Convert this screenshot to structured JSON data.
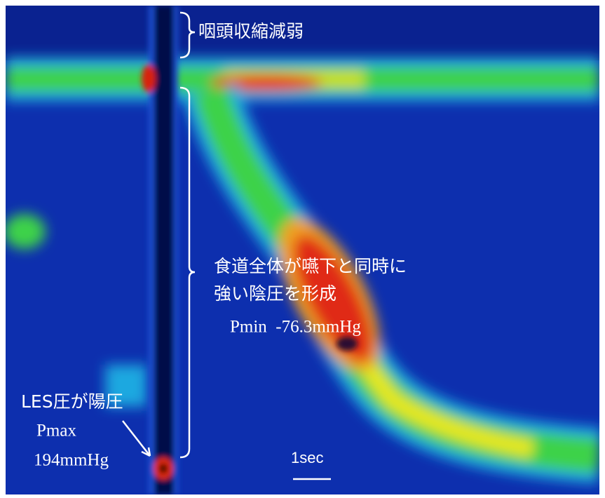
{
  "annotations": {
    "pharynx": "咽頭収縮減弱",
    "esophagus": [
      "食道全体が嚥下と同時に",
      "強い陰圧を形成"
    ],
    "pmin": "Pmin  -76.3mmHg",
    "les": "LES圧が陽圧",
    "pmax": [
      "Pmax",
      "194mmHg"
    ],
    "scale": "1sec"
  }
}
